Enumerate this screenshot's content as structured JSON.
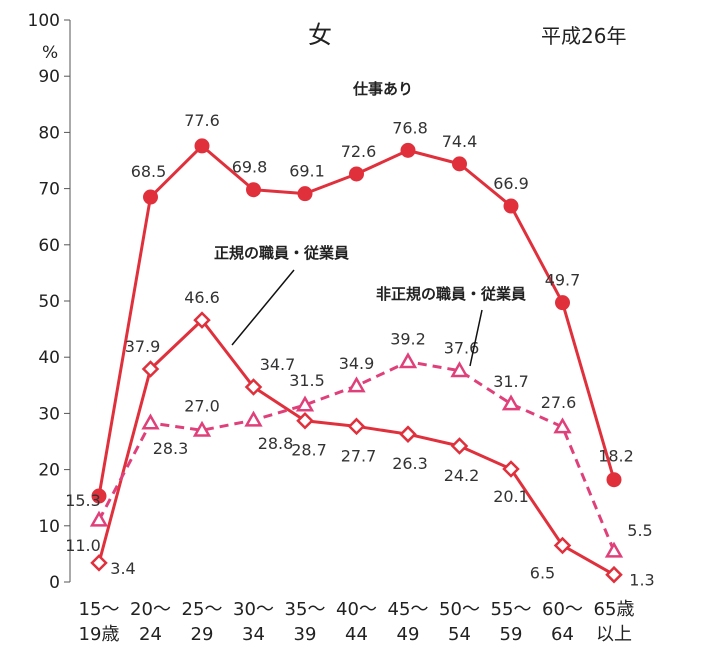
{
  "chart_data": {
    "type": "line",
    "title": "女",
    "subtitle": "平成26年",
    "ylabel": "%",
    "ylim": [
      0,
      100
    ],
    "yticks": [
      0,
      10,
      20,
      30,
      40,
      50,
      60,
      70,
      80,
      90,
      100
    ],
    "categories": [
      [
        "15～",
        "19歳"
      ],
      [
        "20～",
        "24"
      ],
      [
        "25～",
        "29"
      ],
      [
        "30～",
        "34"
      ],
      [
        "35～",
        "39"
      ],
      [
        "40～",
        "44"
      ],
      [
        "45～",
        "49"
      ],
      [
        "50～",
        "54"
      ],
      [
        "55～",
        "59"
      ],
      [
        "60～",
        "64"
      ],
      [
        "65歳",
        "以上"
      ]
    ],
    "series": [
      {
        "name": "仕事あり",
        "marker": "circle",
        "line": "solid",
        "color": "#e0303c",
        "values": [
          15.3,
          68.5,
          77.6,
          69.8,
          69.1,
          72.6,
          76.8,
          74.4,
          66.9,
          49.7,
          18.2
        ],
        "labels": [
          "15.3",
          "68.5",
          "77.6",
          "69.8",
          "69.1",
          "72.6",
          "76.8",
          "74.4",
          "66.9",
          "49.7",
          "18.2"
        ]
      },
      {
        "name": "正規の職員・従業員",
        "marker": "diamond",
        "line": "solid",
        "color": "#e0303c",
        "values": [
          3.4,
          37.9,
          46.6,
          34.7,
          28.7,
          27.7,
          26.3,
          24.2,
          20.1,
          6.5,
          1.3
        ],
        "labels": [
          "3.4",
          "37.9",
          "46.6",
          "34.7",
          "28.7",
          "27.7",
          "26.3",
          "24.2",
          "20.1",
          "6.5",
          "1.3"
        ]
      },
      {
        "name": "非正規の職員・従業員",
        "marker": "triangle",
        "line": "dashed",
        "color": "#e0407a",
        "values": [
          11.0,
          28.3,
          27.0,
          28.8,
          31.5,
          34.9,
          39.2,
          37.6,
          31.7,
          27.6,
          5.5
        ],
        "labels": [
          "11.0",
          "28.3",
          "27.0",
          "28.8",
          "31.5",
          "34.9",
          "39.2",
          "37.6",
          "31.7",
          "27.6",
          "5.5"
        ]
      }
    ],
    "grid": false,
    "legend": "inline labels"
  }
}
